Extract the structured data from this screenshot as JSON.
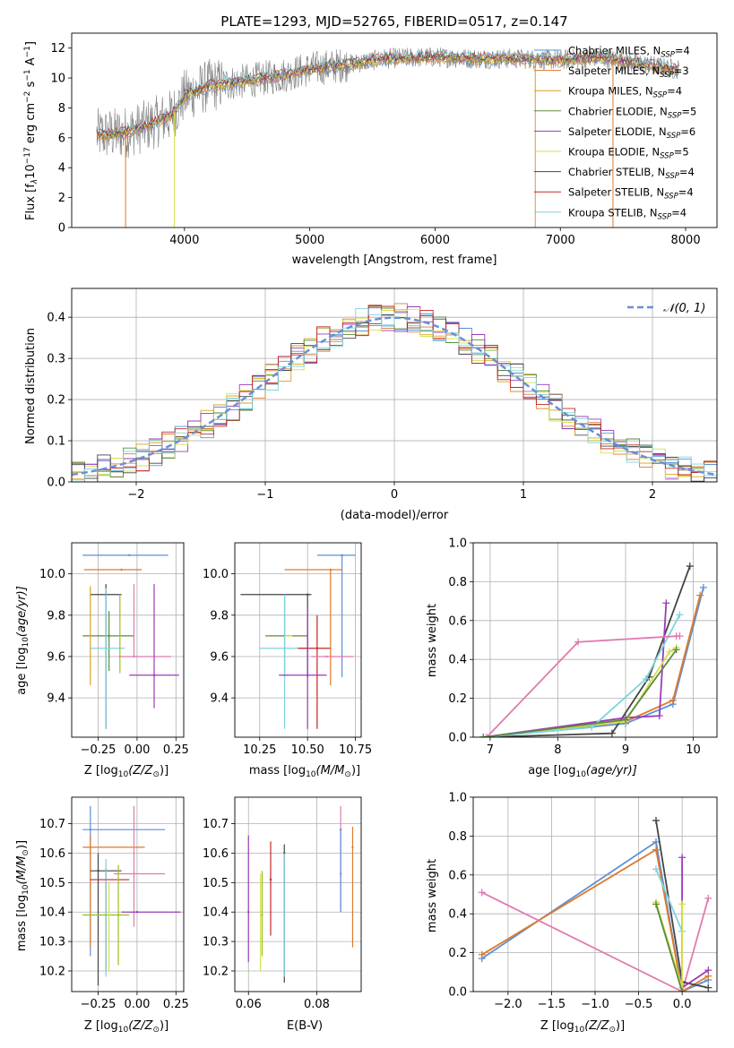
{
  "colors": {
    "Chabrier MILES": "#5b8fd9",
    "Salpeter MILES": "#e07a2a",
    "Kroupa MILES": "#d9a21c",
    "Chabrier ELODIE": "#5b8a3c",
    "Salpeter ELODIE": "#9a3cb8",
    "Kroupa ELODIE": "#d4e04a",
    "Chabrier STELIB": "#444444",
    "Salpeter STELIB": "#c0282a",
    "Kroupa STELIB": "#7ed3e0",
    "extra_pink": "#e07ab0",
    "extra_lime": "#9ac020",
    "normal_curve": "#6a8fd9",
    "grid": "#b0b0b0"
  },
  "chart_data": [
    {
      "id": "spectrum",
      "type": "line",
      "title": "PLATE=1293, MJD=52765, FIBERID=0517, z=0.147",
      "xlabel": "wavelength [Angstrom, rest frame]",
      "ylabel": "Flux [f",
      "ylabel_tail": "10",
      "xlim": [
        3100,
        8250
      ],
      "ylim": [
        0,
        13
      ],
      "xticks": [
        4000,
        5000,
        6000,
        7000,
        8000
      ],
      "yticks": [
        0,
        2,
        4,
        6,
        8,
        10,
        12
      ],
      "xtick_labels": [
        "4000",
        "5000",
        "6000",
        "7000",
        "8000"
      ],
      "ytick_labels": [
        "0",
        "2",
        "4",
        "6",
        "8",
        "10",
        "12"
      ],
      "legend_position": "top-right",
      "legend": [
        {
          "model": "Chabrier MILES",
          "n": "4"
        },
        {
          "model": "Salpeter MILES",
          "n": "3"
        },
        {
          "model": "Kroupa MILES",
          "n": "4"
        },
        {
          "model": "Chabrier ELODIE",
          "n": "5"
        },
        {
          "model": "Salpeter ELODIE",
          "n": "6"
        },
        {
          "model": "Kroupa ELODIE",
          "n": "5"
        },
        {
          "model": "Chabrier STELIB",
          "n": "4"
        },
        {
          "model": "Salpeter STELIB",
          "n": "4"
        },
        {
          "model": "Kroupa STELIB",
          "n": "4"
        }
      ],
      "legend_n_label": "N",
      "legend_n_sub": "SSP",
      "continuum": [
        [
          3300,
          6.2
        ],
        [
          3500,
          6.3
        ],
        [
          3700,
          6.8
        ],
        [
          3900,
          7.5
        ],
        [
          4000,
          8.8
        ],
        [
          4200,
          9.5
        ],
        [
          4500,
          9.8
        ],
        [
          4800,
          10.2
        ],
        [
          5000,
          10.6
        ],
        [
          5300,
          10.9
        ],
        [
          5600,
          11.3
        ],
        [
          6000,
          11.4
        ],
        [
          6300,
          11.3
        ],
        [
          6600,
          11.3
        ],
        [
          7000,
          11.2
        ],
        [
          7300,
          11.4
        ],
        [
          7600,
          11.0
        ],
        [
          7900,
          10.6
        ]
      ],
      "data_range": [
        3300,
        7950
      ],
      "drops": [
        {
          "model": "Salpeter MILES",
          "at": 3530
        },
        {
          "model": "Kroupa ELODIE",
          "at": 3920
        },
        {
          "model": "Kroupa MILES",
          "at": 6800
        },
        {
          "model": "Salpeter MILES",
          "at": 7420
        }
      ]
    },
    {
      "id": "residual-histogram",
      "type": "area",
      "xlabel": "(data-model)/error",
      "ylabel": "Normed distribution",
      "xlim": [
        -2.5,
        2.5
      ],
      "ylim": [
        0,
        0.47
      ],
      "xticks": [
        -2,
        -1,
        0,
        1,
        2
      ],
      "yticks": [
        0,
        0.1,
        0.2,
        0.3,
        0.4
      ],
      "xtick_labels": [
        "−2",
        "−1",
        "0",
        "1",
        "2"
      ],
      "ytick_labels": [
        "0.0",
        "0.1",
        "0.2",
        "0.3",
        "0.4"
      ],
      "legend_position": "top-right",
      "legend_label": "𝒩(0, 1)",
      "bin_width": 0.1,
      "normal": {
        "mean": 0,
        "sigma": 1
      }
    },
    {
      "id": "age-vs-Z",
      "type": "scatter",
      "xlabel": "Z [log",
      "xlabel_tail": "(Z/Z",
      "ylabel": "age  [log",
      "ylabel_tail": "(age/yr)]",
      "xlim": [
        -0.42,
        0.3
      ],
      "ylim": [
        9.21,
        10.15
      ],
      "xticks": [
        -0.25,
        0.0,
        0.25
      ],
      "yticks": [
        9.4,
        9.6,
        9.8,
        10.0
      ],
      "xtick_labels": [
        "−0.25",
        "0.00",
        "0.25"
      ],
      "ytick_labels": [
        "9.4",
        "9.6",
        "9.8",
        "10.0"
      ],
      "points": [
        {
          "c": "Chabrier MILES",
          "x": -0.05,
          "xe": [
            -0.35,
            0.2
          ],
          "y": 10.09,
          "ye": [
            10.09,
            10.09
          ]
        },
        {
          "c": "Salpeter MILES",
          "x": -0.1,
          "xe": [
            -0.34,
            0.03
          ],
          "y": 10.02,
          "ye": [
            10.02,
            10.02
          ]
        },
        {
          "c": "Chabrier STELIB",
          "x": -0.2,
          "xe": [
            -0.3,
            -0.1
          ],
          "y": 9.9,
          "ye": [
            9.25,
            9.95
          ]
        },
        {
          "c": "Chabrier ELODIE",
          "x": -0.18,
          "xe": [
            -0.35,
            -0.02
          ],
          "y": 9.7,
          "ye": [
            9.53,
            9.82
          ]
        },
        {
          "c": "Kroupa MILES",
          "x": -0.3,
          "xe": [
            -0.3,
            -0.3
          ],
          "y": 9.7,
          "ye": [
            9.46,
            9.94
          ]
        },
        {
          "c": "Kroupa STELIB",
          "x": -0.2,
          "xe": [
            -0.3,
            -0.08
          ],
          "y": 9.64,
          "ye": [
            9.25,
            9.93
          ]
        },
        {
          "c": "extra_pink",
          "x": -0.02,
          "xe": [
            -0.12,
            0.22
          ],
          "y": 9.6,
          "ye": [
            9.6,
            9.95
          ]
        },
        {
          "c": "Salpeter ELODIE",
          "x": 0.11,
          "xe": [
            -0.05,
            0.27
          ],
          "y": 9.51,
          "ye": [
            9.35,
            9.95
          ]
        },
        {
          "c": "extra_lime",
          "x": -0.11,
          "xe": [
            -0.11,
            -0.11
          ],
          "y": 9.7,
          "ye": [
            9.52,
            9.9
          ]
        }
      ]
    },
    {
      "id": "age-vs-mass",
      "type": "scatter",
      "xlabel": "mass [log",
      "xlabel_tail": "(M/M",
      "xlim": [
        10.12,
        10.78
      ],
      "ylim": [
        9.21,
        10.15
      ],
      "xticks": [
        10.25,
        10.5,
        10.75
      ],
      "yticks": [
        9.4,
        9.6,
        9.8,
        10.0
      ],
      "xtick_labels": [
        "10.25",
        "10.50",
        "10.75"
      ],
      "ytick_labels": [
        "9.4",
        "9.6",
        "9.8",
        "10.0"
      ],
      "points": [
        {
          "c": "Chabrier MILES",
          "x": 10.68,
          "xe": [
            10.55,
            10.75
          ],
          "y": 10.09,
          "ye": [
            9.5,
            10.09
          ]
        },
        {
          "c": "Salpeter MILES",
          "x": 10.62,
          "xe": [
            10.38,
            10.68
          ],
          "y": 10.02,
          "ye": [
            9.46,
            10.02
          ]
        },
        {
          "c": "Chabrier STELIB",
          "x": 10.5,
          "xe": [
            10.15,
            10.52
          ],
          "y": 9.9,
          "ye": [
            9.5,
            9.9
          ]
        },
        {
          "c": "Chabrier ELODIE",
          "x": 10.38,
          "xe": [
            10.28,
            10.5
          ],
          "y": 9.7,
          "ye": [
            9.5,
            9.9
          ]
        },
        {
          "c": "Kroupa STELIB",
          "x": 10.38,
          "xe": [
            10.25,
            10.5
          ],
          "y": 9.64,
          "ye": [
            9.25,
            9.9
          ]
        },
        {
          "c": "Salpeter STELIB",
          "x": 10.55,
          "xe": [
            10.45,
            10.62
          ],
          "y": 9.64,
          "ye": [
            9.25,
            9.8
          ]
        },
        {
          "c": "extra_pink",
          "x": 10.6,
          "xe": [
            10.52,
            10.74
          ],
          "y": 9.6,
          "ye": [
            9.6,
            9.6
          ]
        },
        {
          "c": "Salpeter ELODIE",
          "x": 10.5,
          "xe": [
            10.35,
            10.6
          ],
          "y": 9.51,
          "ye": [
            9.25,
            9.85
          ]
        },
        {
          "c": "Kroupa ELODIE",
          "x": 10.4,
          "xe": [
            10.38,
            10.42
          ],
          "y": 9.7,
          "ye": [
            9.7,
            9.7
          ]
        }
      ]
    },
    {
      "id": "weight-vs-age",
      "type": "line",
      "xlabel": "age  [log",
      "xlabel_tail": "(age/yr)]",
      "ylabel": "mass weight",
      "xlim": [
        6.75,
        10.35
      ],
      "ylim": [
        0,
        1.0
      ],
      "xticks": [
        7,
        8,
        9,
        10
      ],
      "yticks": [
        0,
        0.2,
        0.4,
        0.6,
        0.8,
        1.0
      ],
      "xtick_labels": [
        "7",
        "8",
        "9",
        "10"
      ],
      "ytick_labels": [
        "0.0",
        "0.2",
        "0.4",
        "0.6",
        "0.8",
        "1.0"
      ],
      "series": [
        {
          "c": "Chabrier MILES",
          "x": [
            6.9,
            9.0,
            9.7,
            10.15
          ],
          "y": [
            0.0,
            0.07,
            0.17,
            0.77
          ]
        },
        {
          "c": "Salpeter MILES",
          "x": [
            6.9,
            9.0,
            9.7,
            10.1
          ],
          "y": [
            0.0,
            0.08,
            0.19,
            0.73
          ]
        },
        {
          "c": "Chabrier STELIB",
          "x": [
            6.9,
            8.8,
            9.35,
            9.95
          ],
          "y": [
            0.0,
            0.02,
            0.31,
            0.88
          ]
        },
        {
          "c": "Salpeter ELODIE",
          "x": [
            6.9,
            9.0,
            9.5,
            9.6
          ],
          "y": [
            0.0,
            0.1,
            0.11,
            0.69
          ]
        },
        {
          "c": "Kroupa ELODIE",
          "x": [
            6.9,
            9.0,
            9.65,
            9.75
          ],
          "y": [
            0.0,
            0.08,
            0.44,
            0.46
          ]
        },
        {
          "c": "Kroupa STELIB",
          "x": [
            6.9,
            8.5,
            9.3,
            9.8
          ],
          "y": [
            0.0,
            0.05,
            0.3,
            0.63
          ]
        },
        {
          "c": "extra_pink",
          "x": [
            6.95,
            8.3,
            9.75,
            9.8
          ],
          "y": [
            0.0,
            0.49,
            0.52,
            0.52
          ]
        },
        {
          "c": "Chabrier ELODIE",
          "x": [
            6.9,
            9.0,
            9.75
          ],
          "y": [
            0.0,
            0.09,
            0.45
          ]
        }
      ]
    },
    {
      "id": "mass-vs-Z",
      "type": "scatter",
      "xlabel": "Z [log",
      "xlabel_tail": "(Z/Z",
      "ylabel": "mass [log",
      "ylabel_tail": "(M/M",
      "xlim": [
        -0.42,
        0.3
      ],
      "ylim": [
        10.13,
        10.79
      ],
      "xticks": [
        -0.25,
        0.0,
        0.25
      ],
      "yticks": [
        10.2,
        10.3,
        10.4,
        10.5,
        10.6,
        10.7
      ],
      "xtick_labels": [
        "−0.25",
        "0.00",
        "0.25"
      ],
      "ytick_labels": [
        "10.2",
        "10.3",
        "10.4",
        "10.5",
        "10.6",
        "10.7"
      ],
      "points": [
        {
          "c": "Chabrier MILES",
          "x": -0.3,
          "xe": [
            -0.35,
            0.18
          ],
          "y": 10.68,
          "ye": [
            10.25,
            10.76
          ]
        },
        {
          "c": "Salpeter MILES",
          "x": -0.3,
          "xe": [
            -0.35,
            0.05
          ],
          "y": 10.62,
          "ye": [
            10.28,
            10.66
          ]
        },
        {
          "c": "Chabrier STELIB",
          "x": -0.25,
          "xe": [
            -0.3,
            -0.1
          ],
          "y": 10.54,
          "ye": [
            10.15,
            10.6
          ]
        },
        {
          "c": "Salpeter STELIB",
          "x": -0.2,
          "xe": [
            -0.3,
            -0.05
          ],
          "y": 10.51,
          "ye": [
            10.2,
            10.55
          ]
        },
        {
          "c": "extra_pink",
          "x": -0.02,
          "xe": [
            -0.15,
            0.18
          ],
          "y": 10.53,
          "ye": [
            10.35,
            10.76
          ]
        },
        {
          "c": "Kroupa STELIB",
          "x": -0.2,
          "xe": [
            -0.35,
            -0.1
          ],
          "y": 10.39,
          "ye": [
            10.18,
            10.58
          ]
        },
        {
          "c": "Salpeter ELODIE",
          "x": 0.0,
          "xe": [
            -0.1,
            0.28
          ],
          "y": 10.4,
          "ye": [
            10.4,
            10.4
          ]
        },
        {
          "c": "extra_lime",
          "x": -0.12,
          "xe": [
            -0.35,
            -0.05
          ],
          "y": 10.39,
          "ye": [
            10.22,
            10.56
          ]
        },
        {
          "c": "Kroupa ELODIE",
          "x": -0.18,
          "xe": [
            -0.18,
            -0.18
          ],
          "y": 10.39,
          "ye": [
            10.2,
            10.5
          ]
        }
      ]
    },
    {
      "id": "mass-vs-ebv",
      "type": "scatter",
      "xlabel": "E(B-V)",
      "xlim": [
        0.056,
        0.093
      ],
      "ylim": [
        10.13,
        10.79
      ],
      "xticks": [
        0.06,
        0.08
      ],
      "yticks": [
        10.2,
        10.3,
        10.4,
        10.5,
        10.6,
        10.7
      ],
      "xtick_labels": [
        "0.06",
        "0.08"
      ],
      "ytick_labels": [
        "10.2",
        "10.3",
        "10.4",
        "10.5",
        "10.6",
        "10.7"
      ],
      "points": [
        {
          "c": "Salpeter ELODIE",
          "x": 0.06,
          "xe": [
            0.06,
            0.06
          ],
          "y": 10.4,
          "ye": [
            10.23,
            10.66
          ]
        },
        {
          "c": "Kroupa ELODIE",
          "x": 0.0635,
          "xe": [
            0.0635,
            0.0635
          ],
          "y": 10.4,
          "ye": [
            10.2,
            10.53
          ]
        },
        {
          "c": "extra_lime",
          "x": 0.064,
          "xe": [
            0.064,
            0.064
          ],
          "y": 10.39,
          "ye": [
            10.25,
            10.54
          ]
        },
        {
          "c": "Salpeter STELIB",
          "x": 0.0665,
          "xe": [
            0.0665,
            0.0665
          ],
          "y": 10.51,
          "ye": [
            10.32,
            10.64
          ]
        },
        {
          "c": "Chabrier STELIB",
          "x": 0.0705,
          "xe": [
            0.0705,
            0.0705
          ],
          "y": 10.6,
          "ye": [
            10.16,
            10.63
          ]
        },
        {
          "c": "Kroupa STELIB",
          "x": 0.0705,
          "xe": [
            0.0705,
            0.0705
          ],
          "y": 10.39,
          "ye": [
            10.18,
            10.6
          ]
        },
        {
          "c": "extra_pink",
          "x": 0.087,
          "xe": [
            0.087,
            0.087
          ],
          "y": 10.53,
          "ye": [
            10.4,
            10.76
          ]
        },
        {
          "c": "Chabrier MILES",
          "x": 0.087,
          "xe": [
            0.087,
            0.087
          ],
          "y": 10.68,
          "ye": [
            10.4,
            10.68
          ]
        },
        {
          "c": "Salpeter MILES",
          "x": 0.0905,
          "xe": [
            0.0905,
            0.0905
          ],
          "y": 10.62,
          "ye": [
            10.28,
            10.69
          ]
        }
      ]
    },
    {
      "id": "weight-vs-Z",
      "type": "line",
      "xlabel": "Z [log",
      "xlabel_tail": "(Z/Z",
      "ylabel": "mass weight",
      "xlim": [
        -2.4,
        0.4
      ],
      "ylim": [
        0,
        1.0
      ],
      "xticks": [
        -2.0,
        -1.5,
        -1.0,
        -0.5,
        0.0
      ],
      "yticks": [
        0,
        0.2,
        0.4,
        0.6,
        0.8,
        1.0
      ],
      "xtick_labels": [
        "−2.0",
        "−1.5",
        "−1.0",
        "−0.5",
        "0.0"
      ],
      "ytick_labels": [
        "0.0",
        "0.2",
        "0.4",
        "0.6",
        "0.8",
        "1.0"
      ],
      "series": [
        {
          "c": "Chabrier MILES",
          "x": [
            -2.3,
            -0.3,
            0.0,
            0.3
          ],
          "y": [
            0.17,
            0.77,
            0.0,
            0.06
          ]
        },
        {
          "c": "Salpeter MILES",
          "x": [
            -2.3,
            -0.3,
            0.0,
            0.3
          ],
          "y": [
            0.19,
            0.73,
            0.0,
            0.08
          ]
        },
        {
          "c": "extra_pink",
          "x": [
            -2.3,
            0.0,
            0.3
          ],
          "y": [
            0.51,
            0.0,
            0.48
          ]
        },
        {
          "c": "Chabrier STELIB",
          "x": [
            -0.3,
            0.0,
            0.3
          ],
          "y": [
            0.88,
            0.05,
            0.02
          ]
        },
        {
          "c": "Kroupa STELIB",
          "x": [
            -0.3,
            0.0
          ],
          "y": [
            0.63,
            0.31
          ]
        },
        {
          "c": "Salpeter ELODIE",
          "x": [
            0.0,
            0.0,
            0.3
          ],
          "y": [
            0.69,
            0.02,
            0.11
          ]
        },
        {
          "c": "Kroupa ELODIE",
          "x": [
            -0.3,
            0.0,
            0.0
          ],
          "y": [
            0.46,
            0.02,
            0.45
          ]
        },
        {
          "c": "Chabrier ELODIE",
          "x": [
            -0.3,
            0.0
          ],
          "y": [
            0.45,
            0.0
          ]
        }
      ]
    }
  ]
}
